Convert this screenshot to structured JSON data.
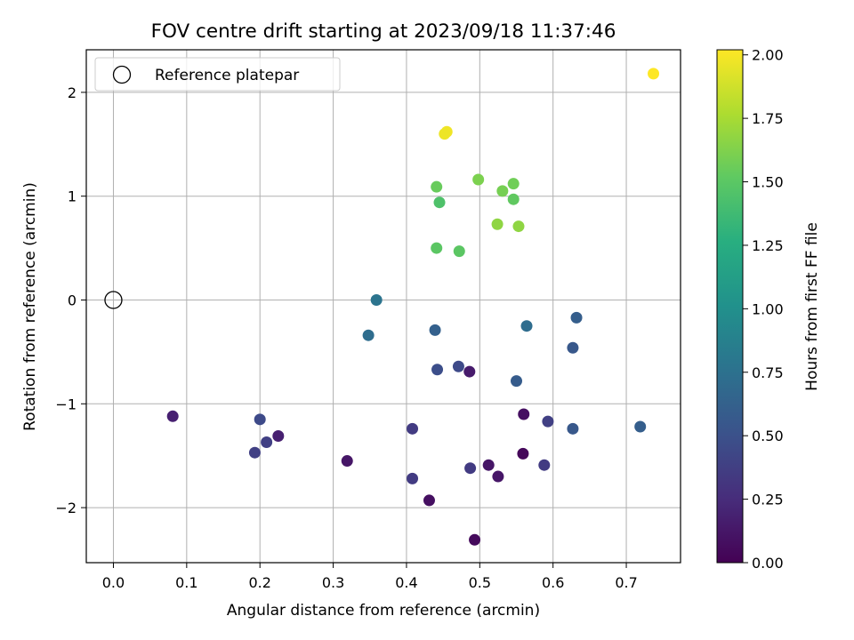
{
  "chart_data": {
    "type": "scatter",
    "title": "FOV centre drift starting at 2023/09/18 11:37:46",
    "xlabel": "Angular distance from reference (arcmin)",
    "ylabel": "Rotation from reference (arcmin)",
    "xlim": [
      -0.037,
      0.774
    ],
    "ylim": [
      -2.53,
      2.41
    ],
    "xticks": [
      0.0,
      0.1,
      0.2,
      0.3,
      0.4,
      0.5,
      0.6,
      0.7
    ],
    "xtick_labels": [
      "0.0",
      "0.1",
      "0.2",
      "0.3",
      "0.4",
      "0.5",
      "0.6",
      "0.7"
    ],
    "yticks": [
      -2,
      -1,
      0,
      1,
      2
    ],
    "ytick_labels": [
      "−2",
      "−1",
      "0",
      "1",
      "2"
    ],
    "grid": true,
    "legend": {
      "position": "top-left",
      "entries": [
        "Reference platepar"
      ]
    },
    "reference_point": {
      "x": 0.0,
      "y": 0.0
    },
    "colorbar": {
      "label": "Hours from first FF file",
      "range": [
        0.0,
        2.02
      ],
      "ticks": [
        0.0,
        0.25,
        0.5,
        0.75,
        1.0,
        1.25,
        1.5,
        1.75,
        2.0
      ],
      "tick_labels": [
        "0.00",
        "0.25",
        "0.50",
        "0.75",
        "1.00",
        "1.25",
        "1.50",
        "1.75",
        "2.00"
      ],
      "colormap": "viridis"
    },
    "points": [
      {
        "x": 0.737,
        "y": 2.18,
        "c": 2.02
      },
      {
        "x": 0.455,
        "y": 1.62,
        "c": 1.98
      },
      {
        "x": 0.452,
        "y": 1.6,
        "c": 1.97
      },
      {
        "x": 0.498,
        "y": 1.16,
        "c": 1.62
      },
      {
        "x": 0.546,
        "y": 1.12,
        "c": 1.58
      },
      {
        "x": 0.531,
        "y": 1.05,
        "c": 1.6
      },
      {
        "x": 0.441,
        "y": 1.09,
        "c": 1.55
      },
      {
        "x": 0.546,
        "y": 0.97,
        "c": 1.52
      },
      {
        "x": 0.445,
        "y": 0.94,
        "c": 1.45
      },
      {
        "x": 0.524,
        "y": 0.73,
        "c": 1.68
      },
      {
        "x": 0.553,
        "y": 0.71,
        "c": 1.68
      },
      {
        "x": 0.441,
        "y": 0.5,
        "c": 1.5
      },
      {
        "x": 0.472,
        "y": 0.47,
        "c": 1.5
      },
      {
        "x": 0.359,
        "y": 0.0,
        "c": 0.78
      },
      {
        "x": 0.564,
        "y": -0.25,
        "c": 0.72
      },
      {
        "x": 0.632,
        "y": -0.17,
        "c": 0.6
      },
      {
        "x": 0.348,
        "y": -0.34,
        "c": 0.72
      },
      {
        "x": 0.439,
        "y": -0.29,
        "c": 0.62
      },
      {
        "x": 0.627,
        "y": -0.46,
        "c": 0.55
      },
      {
        "x": 0.442,
        "y": -0.67,
        "c": 0.48
      },
      {
        "x": 0.471,
        "y": -0.64,
        "c": 0.45
      },
      {
        "x": 0.486,
        "y": -0.69,
        "c": 0.15
      },
      {
        "x": 0.55,
        "y": -0.78,
        "c": 0.58
      },
      {
        "x": 0.081,
        "y": -1.12,
        "c": 0.18
      },
      {
        "x": 0.2,
        "y": -1.15,
        "c": 0.45
      },
      {
        "x": 0.209,
        "y": -1.37,
        "c": 0.38
      },
      {
        "x": 0.225,
        "y": -1.31,
        "c": 0.18
      },
      {
        "x": 0.193,
        "y": -1.47,
        "c": 0.38
      },
      {
        "x": 0.319,
        "y": -1.55,
        "c": 0.12
      },
      {
        "x": 0.408,
        "y": -1.24,
        "c": 0.35
      },
      {
        "x": 0.408,
        "y": -1.72,
        "c": 0.35
      },
      {
        "x": 0.431,
        "y": -1.93,
        "c": 0.08
      },
      {
        "x": 0.487,
        "y": -1.62,
        "c": 0.35
      },
      {
        "x": 0.512,
        "y": -1.59,
        "c": 0.12
      },
      {
        "x": 0.525,
        "y": -1.7,
        "c": 0.12
      },
      {
        "x": 0.493,
        "y": -2.31,
        "c": 0.05
      },
      {
        "x": 0.56,
        "y": -1.1,
        "c": 0.08
      },
      {
        "x": 0.593,
        "y": -1.17,
        "c": 0.38
      },
      {
        "x": 0.559,
        "y": -1.48,
        "c": 0.04
      },
      {
        "x": 0.588,
        "y": -1.59,
        "c": 0.35
      },
      {
        "x": 0.627,
        "y": -1.24,
        "c": 0.55
      },
      {
        "x": 0.719,
        "y": -1.22,
        "c": 0.6
      }
    ]
  }
}
